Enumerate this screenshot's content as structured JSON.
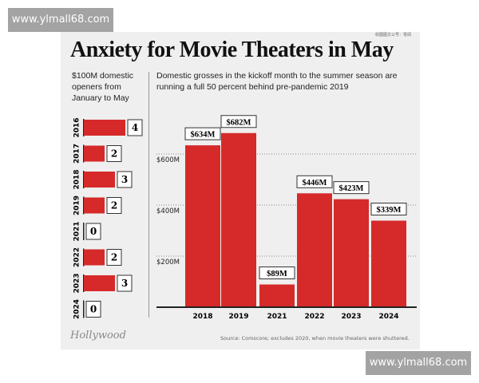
{
  "watermark": "www.ylmall68.com",
  "title": "Anxiety for Movie Theaters in May",
  "credit": "收图图文公号：零阅",
  "logo": "The Hollywood Reporter",
  "source": "Source: Comscore; excludes 2020, when movie theaters were shuttered.",
  "chart_data": [
    {
      "type": "bar",
      "orientation": "horizontal",
      "subtitle": "$100M domestic openers from January to May",
      "categories": [
        "2016",
        "2017",
        "2018",
        "2019",
        "2021",
        "2022",
        "2023",
        "2024"
      ],
      "values": [
        4,
        2,
        3,
        2,
        0,
        2,
        3,
        0
      ],
      "color": "#d62a2a"
    },
    {
      "type": "bar",
      "subtitle": "Domestic grosses in the kickoff month to the summer season are running a full 50 percent behind pre-pandemic 2019",
      "categories": [
        "2018",
        "2019",
        "2021",
        "2022",
        "2023",
        "2024"
      ],
      "values": [
        634,
        682,
        89,
        446,
        423,
        339
      ],
      "data_labels": [
        "$634M",
        "$682M",
        "$89M",
        "$446M",
        "$423M",
        "$339M"
      ],
      "yticks": [
        {
          "value": 200,
          "label": "$200M"
        },
        {
          "value": 400,
          "label": "$400M"
        },
        {
          "value": 600,
          "label": "$600M"
        }
      ],
      "ylim": [
        0,
        700
      ],
      "grid": true,
      "color": "#d62a2a"
    }
  ]
}
